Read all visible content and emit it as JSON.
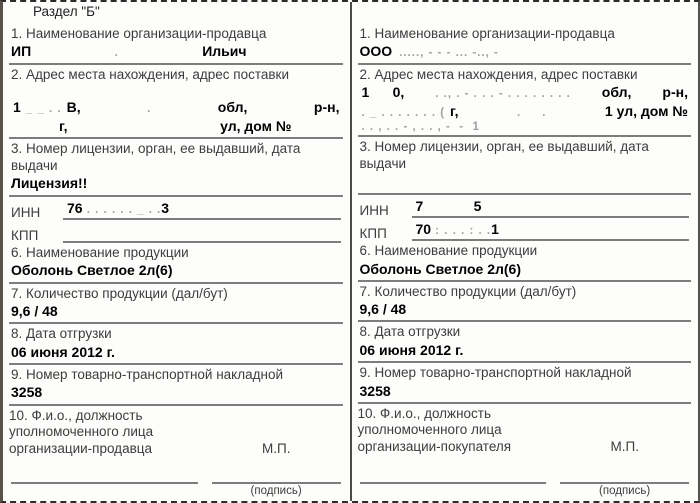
{
  "doc": {
    "section_title": "Раздел \"Б\"",
    "fields": {
      "f1": "1. Наименование организации-продавца",
      "f2": "2. Адрес места нахождения, адрес поставки",
      "f3a": "3. Номер лицензии, орган, ее выдавший, дата",
      "f3b": "выдачи",
      "inn": "ИНН",
      "kpp": "КПП",
      "f6": "6. Наименование продукции",
      "f7": "7. Количество продукции (дал/бут)",
      "f8": "8. Дата отгрузки",
      "f9": "9. Номер товарно-транспортной накладной",
      "f10l1": "10. Ф.и.о., должность",
      "f10l2": "уполномоченного лица",
      "mp": "М.П.",
      "sign_caption": "(подпись)"
    },
    "seller": {
      "name_a": "ИП",
      "name_mid": ".",
      "name_b": "Ильич",
      "addr1_n1": "1",
      "addr1_r": "_ _ . .",
      "addr1_n2": "В,",
      "addr1_mid": ".",
      "addr1_obl": "обл,",
      "addr1_rn": "р-н,",
      "addr2_a": "г,",
      "addr2_b": "ул, дом №",
      "license": "Лицензия!!",
      "inn_a": "76",
      "inn_dots": " . . . . . . _ . .",
      "inn_b": "3",
      "kpp_a": "",
      "kpp_dots": "",
      "kpp_b": "",
      "product": "Оболонь Светлое 2л(6)",
      "quantity": "9,6 / 48",
      "ship_date": "06 июня 2012 г.",
      "waybill": "3258",
      "role_line": "организации-продавца"
    },
    "buyer": {
      "name_a": "ООО",
      "name_mid": "....., - - - ... -.., -",
      "name_b": "",
      "addr1_n1": "1      0,",
      "addr1_r": ". ., . - . . . - . . . . . . . .",
      "addr1_obl": "обл,",
      "addr1_rn": "р-н,",
      "addr2_r": ". _ . . . . . . . (",
      "addr2_a": "г,",
      "addr2_mid": ".     .",
      "addr2_b": "1 ул, дом №",
      "addr3": ". . , . . - , . . , -  -  1",
      "license": "",
      "inn_a": "7",
      "inn_dots": "            ",
      "inn_b": "5",
      "kpp_a": "70",
      "kpp_dots": " : . . . : . .",
      "kpp_b": "1",
      "product": "Оболонь Светлое 2л(6)",
      "quantity": "9,6 / 48",
      "ship_date": "06 июня 2012 г.",
      "waybill": "3258",
      "role_line": "организации-покупателя"
    }
  }
}
